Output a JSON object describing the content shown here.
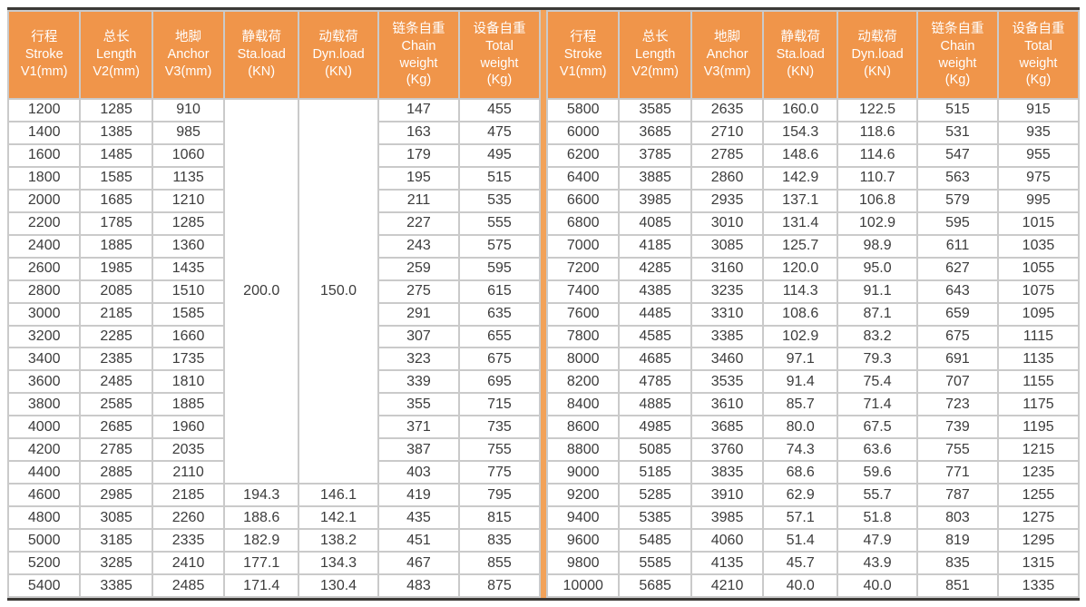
{
  "table": {
    "accent_color": "#f0954a",
    "divider_color": "#f2a259",
    "grid_color": "#cacaca",
    "frame_color": "#3b3936",
    "header_text_color": "#ffffff",
    "body_text_color": "#3c3c3c",
    "columns": [
      {
        "lines": [
          "行程",
          "Stroke",
          "V1(mm)"
        ]
      },
      {
        "lines": [
          "总长",
          "Length",
          "V2(mm)"
        ]
      },
      {
        "lines": [
          "地脚",
          "Anchor",
          "V3(mm)"
        ]
      },
      {
        "lines": [
          "静载荷",
          "Sta.load",
          "(KN)"
        ]
      },
      {
        "lines": [
          "动载荷",
          "Dyn.load",
          "(KN)"
        ]
      },
      {
        "lines": [
          "链条自重",
          "Chain",
          "weight",
          "(Kg)"
        ]
      },
      {
        "lines": [
          "设备自重",
          "Total",
          "weight",
          "(Kg)"
        ]
      }
    ],
    "left": {
      "merged": [
        {
          "col": 3,
          "start_row": 0,
          "span": 17,
          "value": "200.0"
        },
        {
          "col": 4,
          "start_row": 0,
          "span": 17,
          "value": "150.0"
        }
      ],
      "rows": [
        [
          "1200",
          "1285",
          "910",
          null,
          null,
          "147",
          "455"
        ],
        [
          "1400",
          "1385",
          "985",
          null,
          null,
          "163",
          "475"
        ],
        [
          "1600",
          "1485",
          "1060",
          null,
          null,
          "179",
          "495"
        ],
        [
          "1800",
          "1585",
          "1135",
          null,
          null,
          "195",
          "515"
        ],
        [
          "2000",
          "1685",
          "1210",
          null,
          null,
          "211",
          "535"
        ],
        [
          "2200",
          "1785",
          "1285",
          null,
          null,
          "227",
          "555"
        ],
        [
          "2400",
          "1885",
          "1360",
          null,
          null,
          "243",
          "575"
        ],
        [
          "2600",
          "1985",
          "1435",
          null,
          null,
          "259",
          "595"
        ],
        [
          "2800",
          "2085",
          "1510",
          null,
          null,
          "275",
          "615"
        ],
        [
          "3000",
          "2185",
          "1585",
          null,
          null,
          "291",
          "635"
        ],
        [
          "3200",
          "2285",
          "1660",
          null,
          null,
          "307",
          "655"
        ],
        [
          "3400",
          "2385",
          "1735",
          null,
          null,
          "323",
          "675"
        ],
        [
          "3600",
          "2485",
          "1810",
          null,
          null,
          "339",
          "695"
        ],
        [
          "3800",
          "2585",
          "1885",
          null,
          null,
          "355",
          "715"
        ],
        [
          "4000",
          "2685",
          "1960",
          null,
          null,
          "371",
          "735"
        ],
        [
          "4200",
          "2785",
          "2035",
          null,
          null,
          "387",
          "755"
        ],
        [
          "4400",
          "2885",
          "2110",
          null,
          null,
          "403",
          "775"
        ],
        [
          "4600",
          "2985",
          "2185",
          "194.3",
          "146.1",
          "419",
          "795"
        ],
        [
          "4800",
          "3085",
          "2260",
          "188.6",
          "142.1",
          "435",
          "815"
        ],
        [
          "5000",
          "3185",
          "2335",
          "182.9",
          "138.2",
          "451",
          "835"
        ],
        [
          "5200",
          "3285",
          "2410",
          "177.1",
          "134.3",
          "467",
          "855"
        ],
        [
          "5400",
          "3385",
          "2485",
          "171.4",
          "130.4",
          "483",
          "875"
        ]
      ]
    },
    "right": {
      "merged": [],
      "rows": [
        [
          "5800",
          "3585",
          "2635",
          "160.0",
          "122.5",
          "515",
          "915"
        ],
        [
          "6000",
          "3685",
          "2710",
          "154.3",
          "118.6",
          "531",
          "935"
        ],
        [
          "6200",
          "3785",
          "2785",
          "148.6",
          "114.6",
          "547",
          "955"
        ],
        [
          "6400",
          "3885",
          "2860",
          "142.9",
          "110.7",
          "563",
          "975"
        ],
        [
          "6600",
          "3985",
          "2935",
          "137.1",
          "106.8",
          "579",
          "995"
        ],
        [
          "6800",
          "4085",
          "3010",
          "131.4",
          "102.9",
          "595",
          "1015"
        ],
        [
          "7000",
          "4185",
          "3085",
          "125.7",
          "98.9",
          "611",
          "1035"
        ],
        [
          "7200",
          "4285",
          "3160",
          "120.0",
          "95.0",
          "627",
          "1055"
        ],
        [
          "7400",
          "4385",
          "3235",
          "114.3",
          "91.1",
          "643",
          "1075"
        ],
        [
          "7600",
          "4485",
          "3310",
          "108.6",
          "87.1",
          "659",
          "1095"
        ],
        [
          "7800",
          "4585",
          "3385",
          "102.9",
          "83.2",
          "675",
          "1115"
        ],
        [
          "8000",
          "4685",
          "3460",
          "97.1",
          "79.3",
          "691",
          "1135"
        ],
        [
          "8200",
          "4785",
          "3535",
          "91.4",
          "75.4",
          "707",
          "1155"
        ],
        [
          "8400",
          "4885",
          "3610",
          "85.7",
          "71.4",
          "723",
          "1175"
        ],
        [
          "8600",
          "4985",
          "3685",
          "80.0",
          "67.5",
          "739",
          "1195"
        ],
        [
          "8800",
          "5085",
          "3760",
          "74.3",
          "63.6",
          "755",
          "1215"
        ],
        [
          "9000",
          "5185",
          "3835",
          "68.6",
          "59.6",
          "771",
          "1235"
        ],
        [
          "9200",
          "5285",
          "3910",
          "62.9",
          "55.7",
          "787",
          "1255"
        ],
        [
          "9400",
          "5385",
          "3985",
          "57.1",
          "51.8",
          "803",
          "1275"
        ],
        [
          "9600",
          "5485",
          "4060",
          "51.4",
          "47.9",
          "819",
          "1295"
        ],
        [
          "9800",
          "5585",
          "4135",
          "45.7",
          "43.9",
          "835",
          "1315"
        ],
        [
          "10000",
          "5685",
          "4210",
          "40.0",
          "40.0",
          "851",
          "1335"
        ]
      ]
    }
  }
}
